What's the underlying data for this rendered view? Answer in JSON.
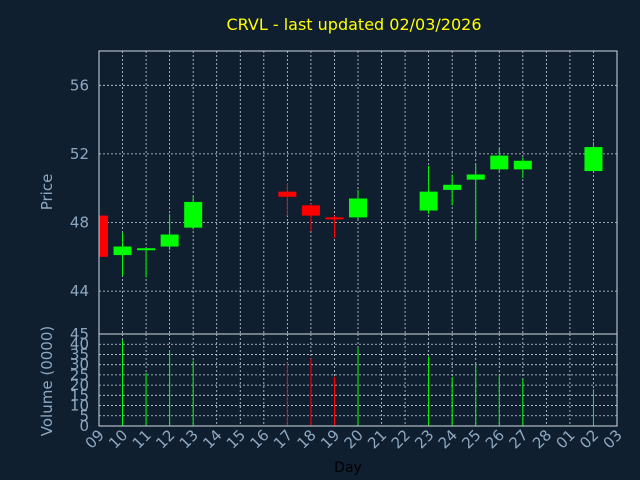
{
  "chart_data": {
    "type": "candlestick",
    "title": "CRVL - last updated 02/03/2026",
    "xlabel": "Day",
    "colors": {
      "background": "#0f1f30",
      "up": "#00ff00",
      "down": "#ff0000",
      "text": "#8fa8c0",
      "title": "#ffff00"
    },
    "x_ticks": [
      "09",
      "10",
      "11",
      "12",
      "13",
      "14",
      "15",
      "16",
      "17",
      "18",
      "19",
      "20",
      "21",
      "22",
      "23",
      "24",
      "25",
      "26",
      "27",
      "28",
      "01",
      "02",
      "03"
    ],
    "price_panel": {
      "ylabel": "Price",
      "ylim": [
        41.5,
        58
      ],
      "yticks": [
        44,
        48,
        52,
        56
      ]
    },
    "volume_panel": {
      "ylabel": "Volume (0000)",
      "ylim": [
        0,
        45
      ],
      "yticks": [
        0,
        5,
        10,
        15,
        20,
        25,
        30,
        35,
        40
      ],
      "top_label": "45"
    },
    "candles": [
      {
        "day": "09",
        "open": 48.4,
        "high": 48.4,
        "low": 46.0,
        "close": 46.0,
        "volume": 0
      },
      {
        "day": "10",
        "open": 46.1,
        "high": 47.4,
        "low": 44.9,
        "close": 46.6,
        "volume": 42
      },
      {
        "day": "11",
        "open": 46.4,
        "high": 46.5,
        "low": 44.8,
        "close": 46.5,
        "volume": 26
      },
      {
        "day": "12",
        "open": 46.6,
        "high": 48.5,
        "low": 46.4,
        "close": 47.3,
        "volume": 37
      },
      {
        "day": "13",
        "open": 47.7,
        "high": 49.5,
        "low": 47.6,
        "close": 49.2,
        "volume": 32
      },
      {
        "day": "17",
        "open": 49.8,
        "high": 50.3,
        "low": 48.4,
        "close": 49.5,
        "volume": 31
      },
      {
        "day": "18",
        "open": 49.0,
        "high": 49.1,
        "low": 47.5,
        "close": 48.4,
        "volume": 33
      },
      {
        "day": "19",
        "open": 48.3,
        "high": 48.4,
        "low": 47.1,
        "close": 48.2,
        "volume": 24
      },
      {
        "day": "20",
        "open": 48.3,
        "high": 49.9,
        "low": 48.2,
        "close": 49.4,
        "volume": 38
      },
      {
        "day": "23",
        "open": 48.7,
        "high": 51.3,
        "low": 48.5,
        "close": 49.8,
        "volume": 34
      },
      {
        "day": "24",
        "open": 49.9,
        "high": 50.8,
        "low": 49.0,
        "close": 50.2,
        "volume": 24
      },
      {
        "day": "25",
        "open": 50.5,
        "high": 51.4,
        "low": 47.0,
        "close": 50.8,
        "volume": 30
      },
      {
        "day": "26",
        "open": 51.1,
        "high": 52.3,
        "low": 50.9,
        "close": 51.9,
        "volume": 25
      },
      {
        "day": "27",
        "open": 51.1,
        "high": 51.8,
        "low": 50.6,
        "close": 51.6,
        "volume": 23
      },
      {
        "day": "02",
        "open": 51.0,
        "high": 52.7,
        "low": 51.0,
        "close": 52.4,
        "volume": 18
      }
    ]
  }
}
